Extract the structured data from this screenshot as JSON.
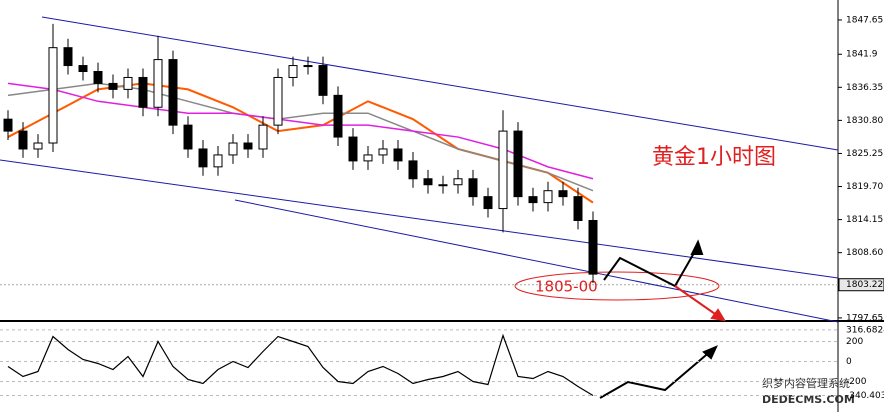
{
  "chart_data": {
    "type": "candlestick",
    "annotation": "黄金1小时图",
    "price_note": "1805-00",
    "watermark_cn": "织梦内容管理系统",
    "watermark_en": "DEDECMS.COM",
    "ylim": [
      1797.3,
      1851.0
    ],
    "yticks": [
      1847.65,
      1841.9,
      {
        "value": 1836.35,
        "label": "1836.35"
      },
      {
        "value": 1830.8,
        "label": "1830.80"
      },
      1825.25,
      {
        "value": 1819.7,
        "label": "1819.70"
      },
      1814.15,
      {
        "value": 1808.6,
        "label": "1808.60"
      },
      1797.65
    ],
    "last_price": 1803.22,
    "open": [
      1831,
      1829,
      1826,
      1827,
      1843,
      1840,
      1839,
      1837,
      1836,
      1838,
      1833,
      1841,
      1830,
      1826,
      1823,
      1825,
      1827,
      1826,
      1830,
      1838,
      1840,
      1840,
      1835,
      1828,
      1824,
      1825,
      1826,
      1824,
      1821,
      1820,
      1820,
      1821,
      1818,
      1816,
      1829,
      1818,
      1817,
      1819,
      1818,
      1814
    ],
    "high": [
      1832.5,
      1830.5,
      1828.5,
      1847,
      1844.5,
      1841.5,
      1840.5,
      1838.5,
      1839.5,
      1839.5,
      1845,
      1842.5,
      1831.5,
      1827.5,
      1826.5,
      1828.5,
      1828.5,
      1831.5,
      1839.5,
      1841.5,
      1841.5,
      1841.5,
      1836.5,
      1829.5,
      1826.5,
      1827.5,
      1827.5,
      1825.5,
      1822.5,
      1821.5,
      1822.5,
      1822.5,
      1819.5,
      1832.5,
      1830.5,
      1819.5,
      1820.5,
      1820.5,
      1819.5,
      1815.5
    ],
    "low": [
      1827.5,
      1824.5,
      1824.5,
      1825.5,
      1838.5,
      1837.5,
      1835.5,
      1834.5,
      1834.5,
      1831.5,
      1831.5,
      1828.5,
      1824.5,
      1821.5,
      1821.5,
      1823.5,
      1824.5,
      1824.5,
      1828.5,
      1836.5,
      1838.5,
      1833.5,
      1826.5,
      1822.5,
      1822.5,
      1823.5,
      1822.5,
      1819.5,
      1818.5,
      1818.5,
      1818.5,
      1816.5,
      1814.5,
      1812,
      1816.5,
      1815.5,
      1815.5,
      1816.5,
      1812.5,
      1803.5
    ],
    "close": [
      1829,
      1826,
      1827,
      1843,
      1840,
      1839,
      1837,
      1836,
      1838,
      1833,
      1841,
      1830,
      1826,
      1823,
      1825,
      1827,
      1826,
      1830,
      1838,
      1840,
      1840,
      1835,
      1828,
      1824,
      1825,
      1826,
      1824,
      1821,
      1820,
      1820,
      1821,
      1818,
      1816,
      1829,
      1818,
      1817,
      1819,
      1818,
      1814,
      1805
    ],
    "ma_x": [
      0,
      3,
      6,
      9,
      12,
      15,
      18,
      21,
      24,
      27,
      30,
      33,
      36,
      39
    ],
    "series": [
      {
        "color": "#ff5a00",
        "values": [
          1828,
          1832,
          1836,
          1837,
          1836,
          1833,
          1829,
          1830,
          1834,
          1831,
          1826,
          1824,
          1822,
          1817
        ]
      },
      {
        "color": "#888888",
        "values": [
          1835,
          1836,
          1837,
          1836,
          1834,
          1832,
          1831,
          1832,
          1832,
          1829,
          1826,
          1824,
          1822,
          1819
        ]
      },
      {
        "color": "#e020e0",
        "values": [
          1837,
          1836,
          1834,
          1833,
          1832,
          1832,
          1831,
          1830,
          1830,
          1829,
          1828,
          1826,
          1823,
          1821
        ]
      }
    ],
    "oscillator": {
      "ylim": [
        -505,
        385
      ],
      "yticks": [
        316.6824,
        200,
        0,
        -200,
        -340.403
      ],
      "values": [
        -50,
        -150,
        -100,
        250,
        120,
        20,
        -20,
        -80,
        50,
        -150,
        200,
        -50,
        -180,
        -220,
        -80,
        0,
        -60,
        100,
        250,
        200,
        150,
        -60,
        -200,
        -220,
        -100,
        -50,
        -120,
        -220,
        -180,
        -150,
        -100,
        -200,
        -230,
        260,
        -150,
        -170,
        -100,
        -150,
        -250,
        -340
      ]
    }
  }
}
